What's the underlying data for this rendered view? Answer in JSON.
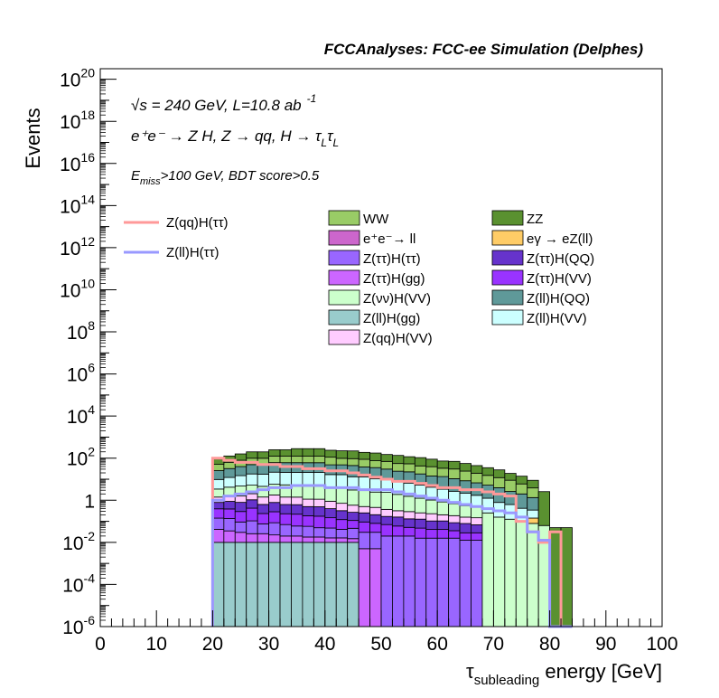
{
  "chart_data": {
    "type": "histogram",
    "title": "FCCAnalyses: FCC-ee Simulation (Delphes)",
    "xlabel_main": "τ",
    "xlabel_sub": "subleading",
    "xlabel_rest": " energy [GeV]",
    "ylabel": "Events",
    "xlim": [
      0,
      100
    ],
    "ylim_log10": [
      -6,
      20.5
    ],
    "y_scale": "log",
    "x_ticks": [
      "0",
      "10",
      "20",
      "30",
      "40",
      "50",
      "60",
      "70",
      "80",
      "90",
      "100"
    ],
    "y_ticks": [
      {
        "exp": -6,
        "label_base": "10",
        "label_exp": "-6"
      },
      {
        "exp": -4,
        "label_base": "10",
        "label_exp": "-4"
      },
      {
        "exp": -2,
        "label_base": "10",
        "label_exp": "-2"
      },
      {
        "exp": 0,
        "label_base": "1",
        "label_exp": ""
      },
      {
        "exp": 2,
        "label_base": "10",
        "label_exp": "2"
      },
      {
        "exp": 4,
        "label_base": "10",
        "label_exp": "4"
      },
      {
        "exp": 6,
        "label_base": "10",
        "label_exp": "6"
      },
      {
        "exp": 8,
        "label_base": "10",
        "label_exp": "8"
      },
      {
        "exp": 10,
        "label_base": "10",
        "label_exp": "10"
      },
      {
        "exp": 12,
        "label_base": "10",
        "label_exp": "12"
      },
      {
        "exp": 14,
        "label_base": "10",
        "label_exp": "14"
      },
      {
        "exp": 16,
        "label_base": "10",
        "label_exp": "16"
      },
      {
        "exp": 18,
        "label_base": "10",
        "label_exp": "18"
      },
      {
        "exp": 20,
        "label_base": "10",
        "label_exp": "20"
      }
    ],
    "annotations": {
      "line1_sqrt": "√s",
      "line1_rest": " = 240 GeV, L=10.8 ab",
      "line1_sup": "-1",
      "line2": "e⁺e⁻ → Z H, Z → qq, H → τ",
      "line2_sub1": "L",
      "line2_mid": "τ",
      "line2_sub2": "L",
      "line3_E": "E",
      "line3_sub": "miss",
      "line3_rest": ">100 GeV, BDT score>0.5"
    },
    "legend_placement": "top-right",
    "signal_legend": [
      {
        "name": "Z(qq)H(ττ)",
        "color": "#ff9999"
      },
      {
        "name": "Z(ll)H(ττ)",
        "color": "#9999ff"
      }
    ],
    "background_legend": [
      {
        "name": "WW",
        "color": "#99cc66"
      },
      {
        "name": "ZZ",
        "color": "#5a9130"
      },
      {
        "name": "e⁺e⁻→ ll",
        "color": "#cc66cc"
      },
      {
        "name": "eγ → eZ(ll)",
        "color": "#ffcc66"
      },
      {
        "name": "Z(ττ)H(ττ)",
        "color": "#9966ff"
      },
      {
        "name": "Z(ττ)H(QQ)",
        "color": "#6633cc"
      },
      {
        "name": "Z(ττ)H(gg)",
        "color": "#cc66ff"
      },
      {
        "name": "Z(ττ)H(VV)",
        "color": "#9933ff"
      },
      {
        "name": "Z(νν)H(VV)",
        "color": "#ccffcc"
      },
      {
        "name": "Z(ll)H(QQ)",
        "color": "#5f9999"
      },
      {
        "name": "Z(ll)H(gg)",
        "color": "#99cccc"
      },
      {
        "name": "Z(ll)H(VV)",
        "color": "#ccffff"
      },
      {
        "name": "Z(qq)H(VV)",
        "color": "#ffccff"
      }
    ],
    "bin_width": 2,
    "bin_edges_start": 20,
    "stack_bins": [
      20,
      22,
      24,
      26,
      28,
      30,
      32,
      34,
      36,
      38,
      40,
      42,
      44,
      46,
      48,
      50,
      52,
      54,
      56,
      58,
      60,
      62,
      64,
      66,
      68,
      70,
      72,
      74,
      76,
      78,
      80,
      82
    ],
    "stack_layers": [
      {
        "name": "Z(ll)H(gg)",
        "color": "#99cccc",
        "log10": [
          -2.0,
          -2.0,
          -2.0,
          -2.0,
          -2.0,
          -2.0,
          -2.0,
          -2.0,
          -2.0,
          -2.0,
          -2.0,
          -2.0,
          -2.0,
          -6,
          -6,
          -6,
          -6,
          -6,
          -6,
          -6,
          -6,
          -6,
          -6,
          -6,
          -6,
          -6,
          -6,
          -6,
          -6,
          -6,
          -6,
          -6
        ]
      },
      {
        "name": "Z(ττ)H(gg)",
        "color": "#cc66ff",
        "log10": [
          -1.5,
          -1.6,
          -1.7,
          -1.8,
          -1.8,
          -1.9,
          -2.0,
          -2.0,
          -2.1,
          -2.1,
          -2.2,
          -2.2,
          -2.3,
          -2.3,
          -2.3,
          -6,
          -6,
          -6,
          -6,
          -6,
          -6,
          -6,
          -6,
          -6,
          -6,
          -6,
          -6,
          -6,
          -6,
          -6,
          -6,
          -6
        ]
      },
      {
        "name": "Z(ττ)H(ττ)",
        "color": "#9966ff",
        "log10": [
          -1.0,
          -1.0,
          -1.2,
          -1.1,
          -1.3,
          -1.2,
          -1.3,
          -1.4,
          -1.4,
          -1.5,
          -1.5,
          -1.6,
          -1.5,
          -1.6,
          -1.6,
          -1.7,
          -1.7,
          -1.7,
          -1.8,
          -1.8,
          -1.8,
          -1.8,
          -1.9,
          -1.9,
          -6,
          -6,
          -6,
          -6,
          -6,
          -6,
          -6,
          -6
        ]
      },
      {
        "name": "Z(ττ)H(VV)",
        "color": "#9933ff",
        "log10": [
          -0.6,
          -0.6,
          -0.7,
          -0.5,
          -0.8,
          -0.7,
          -0.8,
          -0.8,
          -0.9,
          -0.9,
          -1.0,
          -1.1,
          -1.2,
          -1.2,
          -1.3,
          -1.3,
          -1.4,
          -1.5,
          -1.5,
          -1.6,
          -1.6,
          -1.7,
          -1.8,
          -1.8,
          -6,
          -6,
          -6,
          -6,
          -6,
          -6,
          -6,
          -6
        ]
      },
      {
        "name": "Z(ττ)H(QQ)",
        "color": "#6633cc",
        "log10": [
          -0.4,
          -0.3,
          -0.3,
          -0.2,
          -0.4,
          -0.3,
          -0.4,
          -0.4,
          -0.5,
          -0.5,
          -0.6,
          -0.7,
          -0.8,
          -0.8,
          -0.9,
          -1.0,
          -1.0,
          -1.1,
          -1.1,
          -1.2,
          -1.2,
          -1.3,
          -1.3,
          -1.4,
          -6,
          -6,
          -6,
          -6,
          -6,
          -6,
          -6,
          -6
        ]
      },
      {
        "name": "Z(qq)H(VV)",
        "color": "#ffccff",
        "log10": [
          -0.2,
          -0.1,
          -0.1,
          0.0,
          -0.1,
          0.0,
          -0.1,
          -0.1,
          -0.2,
          -0.2,
          -0.3,
          -0.4,
          -0.5,
          -0.6,
          -0.6,
          -0.7,
          -0.8,
          -0.8,
          -0.9,
          -0.9,
          -1.0,
          -1.0,
          -1.1,
          -1.1,
          -6,
          -6,
          -6,
          -6,
          -6,
          -6,
          -6,
          -6
        ]
      },
      {
        "name": "Z(νν)H(VV)",
        "color": "#ccffcc",
        "log10": [
          0.3,
          0.4,
          0.5,
          0.5,
          0.5,
          0.6,
          0.6,
          0.6,
          0.6,
          0.6,
          0.5,
          0.5,
          0.4,
          0.4,
          0.3,
          0.3,
          0.2,
          0.1,
          0.0,
          -0.1,
          -0.2,
          -0.3,
          -0.4,
          -0.5,
          -0.6,
          -0.8,
          -0.9,
          -1.0,
          -1.1,
          -1.2,
          -6,
          -6
        ]
      },
      {
        "name": "eγ → eZ(ll)",
        "color": "#ffcc66",
        "log10": [
          -6,
          -6,
          -6,
          -6,
          -6,
          -6,
          -6,
          -6,
          -6,
          -6,
          -6,
          -6,
          -6,
          -6,
          -6,
          -6,
          -6,
          -6,
          -6,
          -2.2,
          -6,
          -6,
          -6,
          -6,
          -6,
          -6,
          -6,
          -6,
          -1.2,
          -6,
          -6,
          -6
        ]
      },
      {
        "name": "Z(ll)H(VV)",
        "color": "#ccffff",
        "log10": [
          0.8,
          0.9,
          1.0,
          1.1,
          1.1,
          1.2,
          1.2,
          1.2,
          1.2,
          1.2,
          1.1,
          1.1,
          1.0,
          1.0,
          0.9,
          0.9,
          0.8,
          0.7,
          0.6,
          0.5,
          0.4,
          0.3,
          0.2,
          0.1,
          0.0,
          -0.2,
          -0.3,
          -0.5,
          -0.7,
          -6,
          -6,
          -6
        ]
      },
      {
        "name": "Z(ll)H(QQ)",
        "color": "#5f9999",
        "log10": [
          1.2,
          1.3,
          1.4,
          1.5,
          1.5,
          1.6,
          1.6,
          1.6,
          1.6,
          1.6,
          1.5,
          1.5,
          1.5,
          1.4,
          1.4,
          1.3,
          1.2,
          1.2,
          1.1,
          1.0,
          1.0,
          0.9,
          0.8,
          0.7,
          0.6,
          0.5,
          0.3,
          0.2,
          0.0,
          -6,
          -6,
          -6
        ]
      },
      {
        "name": "e⁺e⁻→ ll",
        "color": "#cc66cc",
        "log10": [
          -6,
          -6,
          -6,
          -6,
          -6,
          -6,
          -6,
          -6,
          -6,
          -6,
          -6,
          -6,
          -6,
          -6,
          -6,
          -6,
          -6,
          -6,
          -6,
          -6,
          -6,
          -6,
          -6,
          -6,
          -6,
          -6,
          -6,
          -6,
          -6,
          -6,
          -6,
          -6
        ]
      },
      {
        "name": "WW",
        "color": "#99cc66",
        "log10": [
          1.4,
          1.5,
          1.6,
          1.7,
          1.7,
          1.8,
          1.8,
          1.8,
          1.8,
          1.8,
          1.8,
          1.7,
          1.7,
          1.7,
          1.6,
          1.6,
          1.5,
          1.5,
          1.4,
          1.4,
          1.3,
          1.3,
          1.2,
          1.1,
          1.0,
          0.9,
          0.8,
          0.6,
          0.4,
          -6,
          -6,
          -6
        ]
      },
      {
        "name": "ZZ",
        "color": "#5a9130",
        "log10": [
          1.6,
          1.8,
          1.9,
          2.0,
          2.0,
          2.1,
          2.1,
          2.2,
          2.2,
          2.2,
          2.1,
          2.1,
          2.1,
          2.0,
          2.0,
          1.9,
          1.9,
          1.8,
          1.8,
          1.7,
          1.6,
          1.6,
          1.5,
          1.4,
          1.3,
          1.2,
          1.0,
          0.9,
          0.7,
          0.4,
          -1.3,
          -1.3
        ]
      }
    ],
    "signal_lines": [
      {
        "name": "Z(qq)H(ττ)",
        "color": "#ff9999",
        "log10": [
          2.0,
          1.9,
          1.8,
          1.8,
          1.7,
          1.7,
          1.6,
          1.6,
          1.5,
          1.5,
          1.4,
          1.4,
          1.3,
          1.2,
          1.1,
          1.0,
          0.9,
          0.9,
          0.8,
          0.7,
          0.6,
          0.6,
          0.5,
          0.5,
          0.4,
          0.3,
          0.2,
          -1.0,
          -1.5,
          -2.0,
          -1.5,
          -6
        ]
      },
      {
        "name": "Z(ll)H(ττ)",
        "color": "#9999ff",
        "log10": [
          0.0,
          0.2,
          0.3,
          0.4,
          0.5,
          0.6,
          0.6,
          0.7,
          0.7,
          0.7,
          0.6,
          0.6,
          0.6,
          0.5,
          0.5,
          0.5,
          0.4,
          0.3,
          0.2,
          0.1,
          0.0,
          -0.1,
          -0.2,
          -0.3,
          -0.4,
          -0.5,
          -0.6,
          -0.8,
          -1.5,
          -1.9,
          -6,
          -6
        ]
      }
    ]
  }
}
